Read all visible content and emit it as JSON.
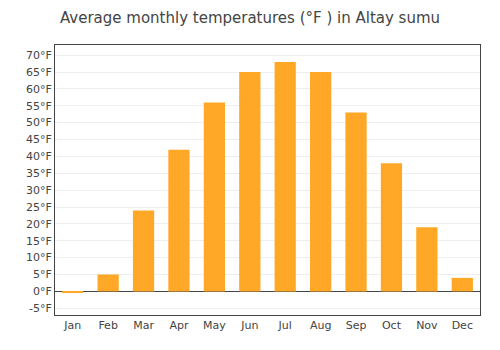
{
  "chart_data": {
    "type": "bar",
    "title": "Average monthly temperatures (°F ) in Altay sumu",
    "categories": [
      "Jan",
      "Feb",
      "Mar",
      "Apr",
      "May",
      "Jun",
      "Jul",
      "Aug",
      "Sep",
      "Oct",
      "Nov",
      "Dec"
    ],
    "values": [
      -0.5,
      5.0,
      24.0,
      42.0,
      56.0,
      65.0,
      68.0,
      65.0,
      53.0,
      38.0,
      19.0,
      4.0
    ],
    "color": "#FFA726",
    "ylim": [
      -7,
      73
    ],
    "yticks": [
      {
        "value": -5,
        "label": "-5°F"
      },
      {
        "value": 0,
        "label": "0°F"
      },
      {
        "value": 5,
        "label": "5°F"
      },
      {
        "value": 10,
        "label": "10°F"
      },
      {
        "value": 15,
        "label": "15°F"
      },
      {
        "value": 20,
        "label": "20°F"
      },
      {
        "value": 25,
        "label": "25°F"
      },
      {
        "value": 30,
        "label": "30°F"
      },
      {
        "value": 35,
        "label": "35°F"
      },
      {
        "value": 40,
        "label": "40°F"
      },
      {
        "value": 45,
        "label": "45°F"
      },
      {
        "value": 50,
        "label": "50°F"
      },
      {
        "value": 55,
        "label": "55°F"
      },
      {
        "value": 60,
        "label": "60°F"
      },
      {
        "value": 65,
        "label": "65°F"
      },
      {
        "value": 70,
        "label": "70°F"
      }
    ],
    "grid": true
  }
}
